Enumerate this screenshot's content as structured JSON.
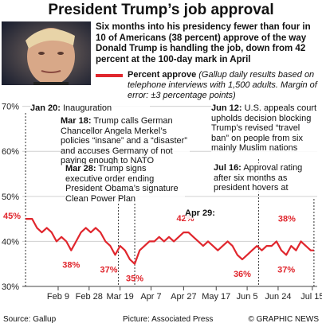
{
  "chart_data": {
    "type": "line",
    "title": "President Trump’s job approval",
    "intro": "Six months into his presidency fewer than four in 10 of Americans (38 percent) approve of the way Donald Trump is handling the job, down from 42 percent at the 100-day mark in April",
    "series": [
      {
        "name": "Percent approve",
        "color": "#e0262d",
        "values": [
          45,
          45,
          45,
          43,
          42,
          43,
          42,
          40,
          41,
          40,
          38,
          40,
          42,
          43,
          42,
          43,
          42,
          40,
          39,
          37,
          39,
          38,
          36,
          35,
          38,
          39,
          40,
          40,
          41,
          40,
          41,
          40,
          41,
          42,
          42,
          41,
          40,
          39,
          40,
          39,
          38,
          39,
          40,
          39,
          37,
          36,
          37,
          38,
          39,
          38,
          39,
          39,
          40,
          38,
          37,
          39,
          38,
          40,
          39,
          38,
          38
        ]
      }
    ],
    "legend_note": "(Gallup daily results based on telephone interviews with 1,500 adults. Margin of error: ±3 percentage points)",
    "x": [
      "Jan 20",
      "Jan 22",
      "Jan 24",
      "Jan 27",
      "Jan 30",
      "Feb 2",
      "Feb 5",
      "Feb 8",
      "Feb 11",
      "Feb 14",
      "Feb 17",
      "Feb 20",
      "Feb 23",
      "Feb 26",
      "Mar 1",
      "Mar 4",
      "Mar 7",
      "Mar 10",
      "Mar 13",
      "Mar 16",
      "Mar 19",
      "Mar 22",
      "Mar 25",
      "Mar 28",
      "Mar 31",
      "Apr 3",
      "Apr 6",
      "Apr 9",
      "Apr 12",
      "Apr 15",
      "Apr 18",
      "Apr 21",
      "Apr 24",
      "Apr 27",
      "Apr 30",
      "May 3",
      "May 6",
      "May 9",
      "May 12",
      "May 15",
      "May 18",
      "May 21",
      "May 24",
      "May 27",
      "May 30",
      "Jun 2",
      "Jun 5",
      "Jun 8",
      "Jun 11",
      "Jun 14",
      "Jun 17",
      "Jun 20",
      "Jun 23",
      "Jun 26",
      "Jun 29",
      "Jul 2",
      "Jul 5",
      "Jul 8",
      "Jul 11",
      "Jul 14",
      "Jul 16"
    ],
    "xlim": [
      "Jan 18",
      "Jul 18"
    ],
    "xticks": [
      "Feb 9",
      "Feb 28",
      "Mar 19",
      "Apr 7",
      "Apr 27",
      "May 17",
      "Jun 5",
      "Jun 24",
      "Jul 15"
    ],
    "ylim": [
      30,
      71
    ],
    "yticks": [
      {
        "value": 30,
        "label": "30%"
      },
      {
        "value": 40,
        "label": "40%"
      },
      {
        "value": 50,
        "label": "50%"
      },
      {
        "value": 60,
        "label": "60%"
      },
      {
        "value": 70,
        "label": "70%"
      }
    ],
    "grid": true,
    "callouts": [
      {
        "x": "Jan 22",
        "value": 45,
        "label": "45%"
      },
      {
        "x": "Feb 17",
        "value": 38,
        "label": "38%"
      },
      {
        "x": "Mar 16",
        "value": 37,
        "label": "37%"
      },
      {
        "x": "Mar 28",
        "value": 35,
        "label": "35%"
      },
      {
        "x": "Apr 30",
        "value": 42,
        "label": "42%"
      },
      {
        "x": "Jun 2",
        "value": 36,
        "label": "36%"
      },
      {
        "x": "Jun 29",
        "value": 37,
        "label": "37%"
      },
      {
        "x": "Jul 16",
        "value": 38,
        "label": "38%"
      }
    ],
    "annotations": [
      {
        "label": "Jan 20:",
        "text": "Inauguration"
      },
      {
        "label": "Mar 18:",
        "text": "Trump calls German Chancellor Angela Merkel’s policies “insane” and a “disaster” and accuses Germany of not paying enough to NATO"
      },
      {
        "label": "Mar 28:",
        "text": "Trump signs executive order ending President Obama’s signature Clean Power Plan"
      },
      {
        "label": "Apr 29:",
        "text": ""
      },
      {
        "label": "Jun 12:",
        "text": "U.S. appeals court upholds decision blocking Trump’s revised “travel ban” on people from six mainly Muslim nations"
      },
      {
        "label": "Jul 16:",
        "text": "Approval rating after six months as president hovers at"
      }
    ],
    "source": "Source: Gallup",
    "credit": "Picture: Associated Press",
    "copyright": "© GRAPHIC NEWS"
  }
}
